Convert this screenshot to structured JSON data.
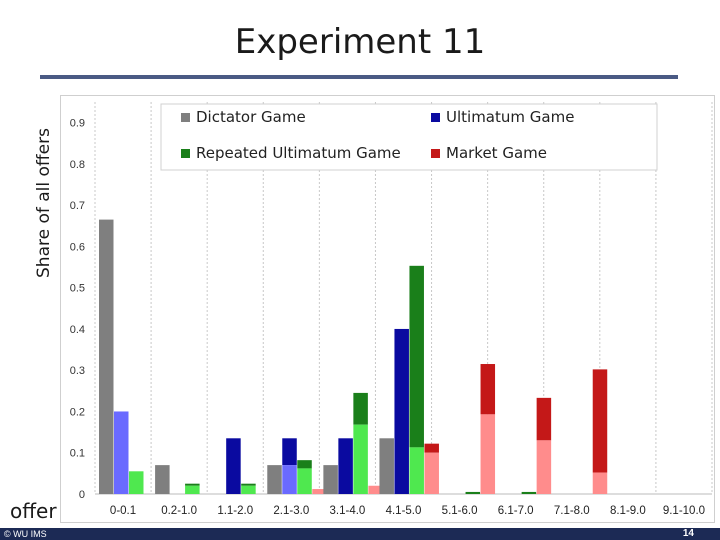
{
  "slide": {
    "title": "Experiment 11",
    "footer_left": "© WU IMS",
    "page_number": "14"
  },
  "chart_data": {
    "type": "bar",
    "ylabel": "Share of all offers",
    "xlabel": "offer",
    "ylim": [
      0,
      0.95
    ],
    "yticks": [
      "0",
      "0.1",
      "0.2",
      "0.3",
      "0.4",
      "0.5",
      "0.6",
      "0.7",
      "0.8",
      "0.9"
    ],
    "grid": "vertical",
    "legend": "top",
    "categories": [
      "0-0.1",
      "0.2-1.0",
      "1.1-2.0",
      "2.1-3.0",
      "3.1-4.0",
      "4.1-5.0",
      "5.1-6.0",
      "6.1-7.0",
      "7.1-8.0",
      "8.1-9.0",
      "9.1-10.0"
    ],
    "series": [
      {
        "name": "Dictator Game",
        "color": "#7f7f7f",
        "values": [
          0.665,
          0.07,
          0,
          0.07,
          0.07,
          0.135,
          0,
          0,
          0,
          0,
          0
        ]
      },
      {
        "name": "Ultimatum Game",
        "color": "#0a0aa0",
        "light_color": "#6a6aff",
        "values": [
          0.2,
          0,
          0.135,
          0.135,
          0.135,
          0.4,
          0,
          0,
          0,
          0,
          0
        ]
      },
      {
        "name": "Repeated Ultimatum Game",
        "color": "#1a7f1a",
        "light_color": "#4fe84f",
        "values": [
          0.055,
          0.025,
          0.025,
          0.082,
          0.245,
          0.553,
          0.005,
          0.005,
          0,
          0,
          0
        ]
      },
      {
        "name": "Market Game",
        "color": "#c41818",
        "light_color": "#ff8c8c",
        "values": [
          0,
          0,
          0,
          0.012,
          0.02,
          0.122,
          0.315,
          0.233,
          0.302,
          0,
          0
        ]
      }
    ],
    "light_segment_values": {
      "Ultimatum Game": [
        0.2,
        0,
        0,
        0.07,
        0,
        0,
        0,
        0,
        0,
        0,
        0
      ],
      "Repeated Ultimatum Game": [
        0.055,
        0.02,
        0.02,
        0.062,
        0.168,
        0.113,
        0,
        0,
        0,
        0,
        0
      ],
      "Market Game": [
        0,
        0,
        0,
        0.012,
        0.02,
        0.1,
        0.193,
        0.13,
        0.052,
        0,
        0
      ]
    }
  }
}
